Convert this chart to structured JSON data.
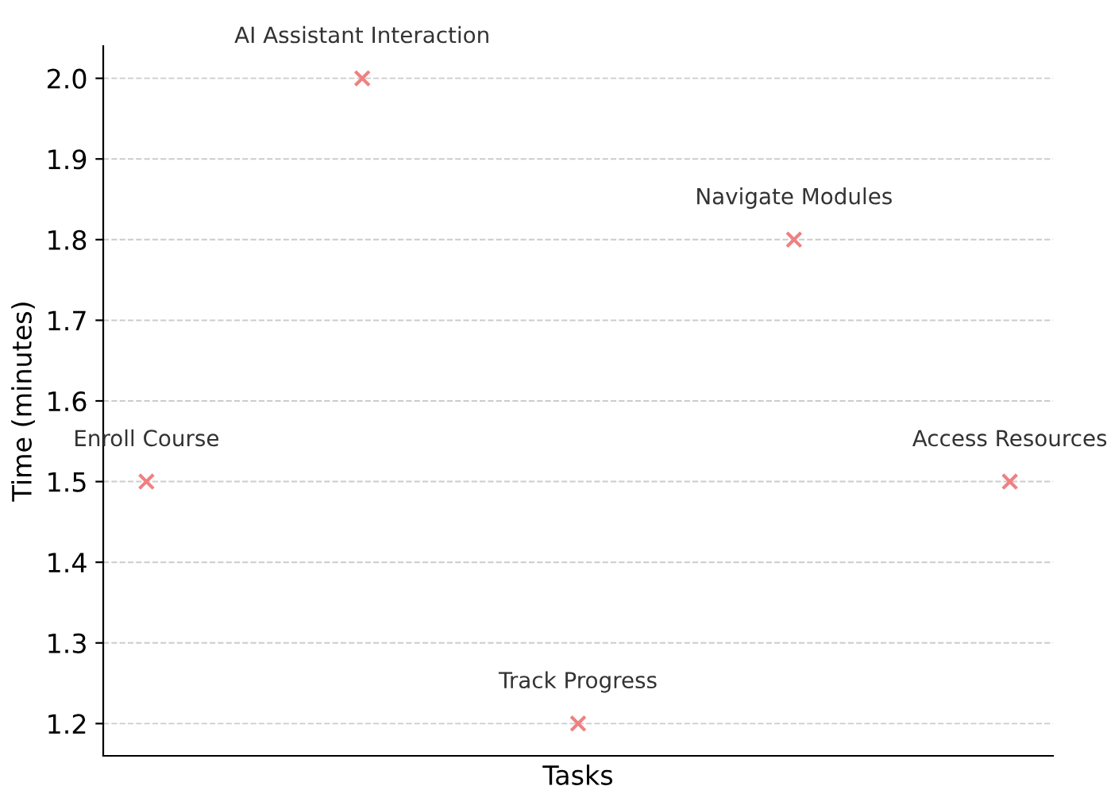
{
  "chart_data": {
    "type": "scatter",
    "xlabel": "Tasks",
    "ylabel": "Time (minutes)",
    "categories": [
      "Enroll Course",
      "AI Assistant Interaction",
      "Track Progress",
      "Navigate Modules",
      "Access Resources"
    ],
    "values": [
      1.5,
      2.0,
      1.2,
      1.8,
      1.5
    ],
    "color": "#f08080",
    "marker": "cross",
    "ylim": [
      1.16,
      2.04
    ],
    "yticks": [
      1.2,
      1.3,
      1.4,
      1.5,
      1.6,
      1.7,
      1.8,
      1.9,
      {
        "value": 2.0,
        "label": "2.0"
      }
    ],
    "grid": "y",
    "tick_labels": "y"
  }
}
